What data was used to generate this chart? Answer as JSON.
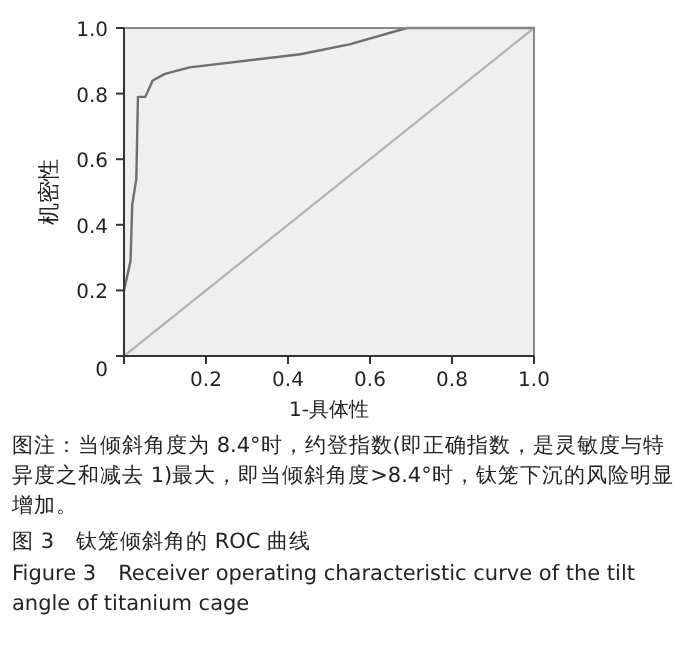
{
  "chart_data": {
    "type": "line",
    "xlabel": "1-具体性",
    "ylabel": "机密性",
    "xlim": [
      0,
      1
    ],
    "ylim": [
      0,
      1
    ],
    "xticks": [
      {
        "value": 0,
        "label": null
      },
      0.2,
      0.4,
      0.6,
      0.8,
      {
        "value": 1,
        "label": "1.0"
      }
    ],
    "yticks": [
      0,
      0.2,
      0.4,
      0.6,
      0.8,
      {
        "value": 1,
        "label": "1.0"
      }
    ],
    "grid": false,
    "marker": "none",
    "series": [
      {
        "color": "#6e6e6e",
        "x": [
          0,
          0.016,
          0.02,
          0.03,
          0.034,
          0.052,
          0.07,
          0.1,
          0.16,
          0.43,
          0.55,
          0.69,
          1
        ],
        "values": [
          0.2,
          0.29,
          0.46,
          0.54,
          0.79,
          0.79,
          0.84,
          0.86,
          0.88,
          0.92,
          0.95,
          1,
          1
        ]
      },
      {
        "color": "#b4b4b4",
        "x": [
          0,
          1
        ],
        "values": [
          0,
          1
        ]
      }
    ],
    "annotations": [
      "图注：当倾斜角度为 8.4°时，约登指数(即正确指数，是灵敏度与特异度之和减去 1)最大，即当倾斜角度>8.4°时，钛笼下沉的风险明显增加。",
      "图 3　钛笼倾斜角的 ROC 曲线",
      "Figure 3　Receiver operating characteristic curve of the tilt angle of titanium cage"
    ]
  }
}
